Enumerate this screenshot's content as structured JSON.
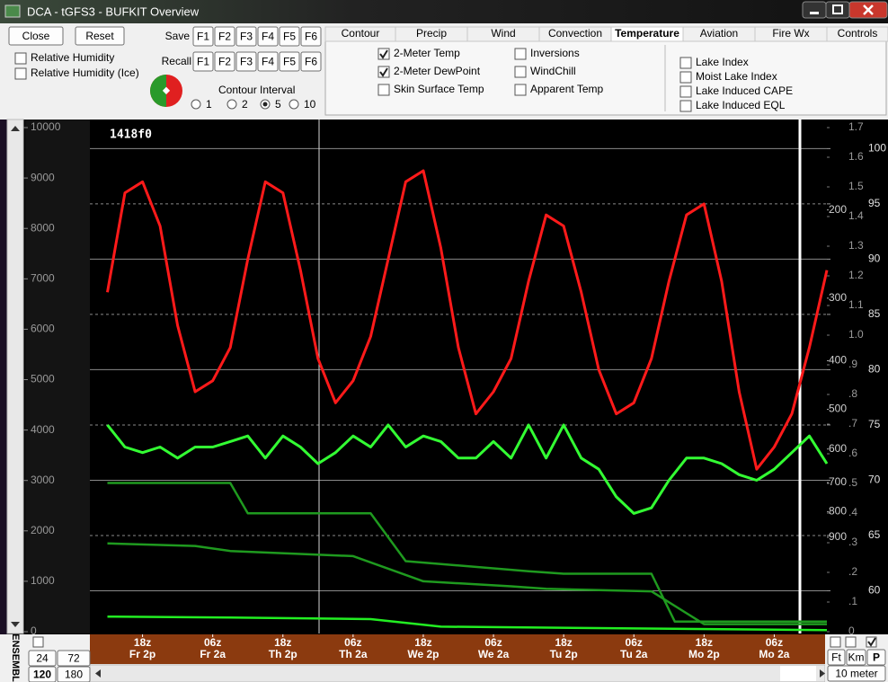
{
  "window": {
    "title": "DCA - tGFS3 - BUFKIT Overview"
  },
  "toolbar": {
    "buttons": [
      "Close",
      "Reset"
    ],
    "save_label": "Save",
    "recall_label": "Recall",
    "function_keys": [
      "F1",
      "F2",
      "F3",
      "F4",
      "F5",
      "F6"
    ],
    "checkboxes": [
      {
        "label": "Relative Humidity",
        "checked": false
      },
      {
        "label": "Relative Humidity (Ice)",
        "checked": false
      }
    ],
    "contour_interval": {
      "label": "Contour Interval",
      "options": [
        "1",
        "2",
        "5",
        "10"
      ],
      "selected": 2
    }
  },
  "tabs": {
    "items": [
      "Contour",
      "Precip",
      "Wind",
      "Convection",
      "Temperature",
      "Aviation",
      "Fire Wx",
      "Controls"
    ],
    "active": 4
  },
  "panel": {
    "columns": [
      [
        {
          "label": "2-Meter Temp",
          "checked": true
        },
        {
          "label": "2-Meter DewPoint",
          "checked": true
        },
        {
          "label": "Skin Surface Temp",
          "checked": false
        }
      ],
      [
        {
          "label": "Inversions",
          "checked": false
        },
        {
          "label": "WindChill",
          "checked": false
        },
        {
          "label": "Apparent Temp",
          "checked": false
        }
      ],
      [
        {
          "label": "Lake Index",
          "checked": false
        },
        {
          "label": "Moist Lake Index",
          "checked": false
        },
        {
          "label": "Lake Induced CAPE",
          "checked": false
        },
        {
          "label": "Lake Induced EQL",
          "checked": false
        }
      ]
    ]
  },
  "chart_data": {
    "type": "line",
    "annotation": "1418f0",
    "xlim": [
      0,
      126
    ],
    "xticks": [
      9,
      21,
      33,
      45,
      57,
      69,
      81,
      93,
      105,
      117
    ],
    "xtick_labels": [
      [
        "18z",
        "Fr 2p"
      ],
      [
        "06z",
        "Fr 2a"
      ],
      [
        "18z",
        "Th 2p"
      ],
      [
        "06z",
        "Th 2a"
      ],
      [
        "18z",
        "We 2p"
      ],
      [
        "06z",
        "We 2a"
      ],
      [
        "18z",
        "Tu 2p"
      ],
      [
        "06z",
        "Tu 2a"
      ],
      [
        "18z",
        "Mo 2p"
      ],
      [
        "06z",
        "Mo 2a"
      ]
    ],
    "ylim": [
      0,
      10000
    ],
    "yticks": [
      0,
      1000,
      2000,
      3000,
      4000,
      5000,
      6000,
      7000,
      8000,
      9000,
      10000
    ],
    "y2lim": [
      56.3,
      101.9
    ],
    "y2ticks": [
      60,
      65,
      70,
      75,
      80,
      85,
      90,
      95,
      100
    ],
    "pressure_lim": [
      1389,
      137
    ],
    "pressure_log": true,
    "pressure_ticks": [
      200,
      300,
      400,
      500,
      600,
      700,
      800,
      900
    ],
    "y3lim": [
      0,
      1.7
    ],
    "y3ticks": [
      0,
      {
        "value": 0.1,
        "label": ".1"
      },
      {
        "value": 0.2,
        "label": ".2"
      },
      {
        "value": 0.3,
        "label": ".3"
      },
      {
        "value": 0.4,
        "label": ".4"
      },
      {
        "value": 0.5,
        "label": ".5"
      },
      {
        "value": 0.6,
        "label": ".6"
      },
      {
        "value": 0.7,
        "label": ".7"
      },
      {
        "value": 0.8,
        "label": ".8"
      },
      {
        "value": 0.9,
        "label": ".9"
      },
      {
        "value": 1.0,
        "label": "1.0"
      },
      1.1,
      1.2,
      1.3,
      1.4,
      1.5,
      1.6,
      1.7
    ],
    "grid": true,
    "series": [
      {
        "color": "#ff1a1a",
        "axis": "y2",
        "x": [
          3,
          6,
          9,
          12,
          15,
          18,
          21,
          24,
          27,
          30,
          33,
          36,
          39,
          42,
          45,
          48,
          51,
          54,
          57,
          60,
          63,
          66,
          69,
          72,
          75,
          78,
          81,
          84,
          87,
          90,
          93,
          96,
          99,
          102,
          105,
          108,
          111,
          114,
          117,
          120,
          123,
          126
        ],
        "values": [
          87,
          96,
          97,
          93,
          84,
          78,
          79,
          82,
          90,
          97,
          96,
          89,
          81,
          77,
          79,
          83,
          90,
          97,
          98,
          91,
          82,
          76,
          78,
          81,
          88,
          94,
          93,
          87,
          80,
          76,
          77,
          81,
          88,
          94,
          95,
          88,
          78,
          71,
          73,
          76,
          82,
          89
        ]
      },
      {
        "color": "#33ff33",
        "axis": "y2",
        "x": [
          3,
          6,
          9,
          12,
          15,
          18,
          21,
          24,
          27,
          30,
          33,
          36,
          39,
          42,
          45,
          48,
          51,
          54,
          57,
          60,
          63,
          66,
          69,
          72,
          75,
          78,
          81,
          84,
          87,
          90,
          93,
          96,
          99,
          102,
          105,
          108,
          111,
          114,
          117,
          120,
          123,
          126
        ],
        "values": [
          75,
          73,
          72.5,
          73,
          72,
          73,
          73,
          73.5,
          74,
          72,
          74,
          73,
          71.5,
          72.5,
          74,
          73,
          75,
          73,
          74,
          73.5,
          72,
          72,
          73.5,
          72,
          75,
          72,
          75,
          72,
          71,
          68.5,
          67,
          67.5,
          70,
          72,
          72,
          71.5,
          70.5,
          70,
          71,
          72.5,
          74,
          71.5
        ]
      },
      {
        "color": "#1f9a1f",
        "x": [
          3,
          24,
          27,
          48,
          54,
          75,
          81,
          96,
          100,
          126
        ],
        "values": [
          2950,
          2950,
          2350,
          2350,
          1400,
          1200,
          1150,
          1150,
          200,
          200
        ]
      },
      {
        "color": "#1f9a1f",
        "x": [
          3,
          18,
          24,
          45,
          57,
          72,
          78,
          96,
          105,
          126
        ],
        "values": [
          1750,
          1700,
          1600,
          1500,
          1000,
          900,
          850,
          800,
          150,
          150
        ]
      },
      {
        "color": "#22ee22",
        "x": [
          3,
          24,
          48,
          60,
          126
        ],
        "values": [
          300,
          280,
          250,
          100,
          30
        ]
      }
    ]
  },
  "bottom": {
    "ensemble_label": "ENSEMBL",
    "hours": [
      "24",
      "72",
      "120",
      "180"
    ],
    "hours_selected": 2,
    "units": [
      "Ft",
      "Km",
      "P"
    ],
    "level": "10 meter"
  }
}
